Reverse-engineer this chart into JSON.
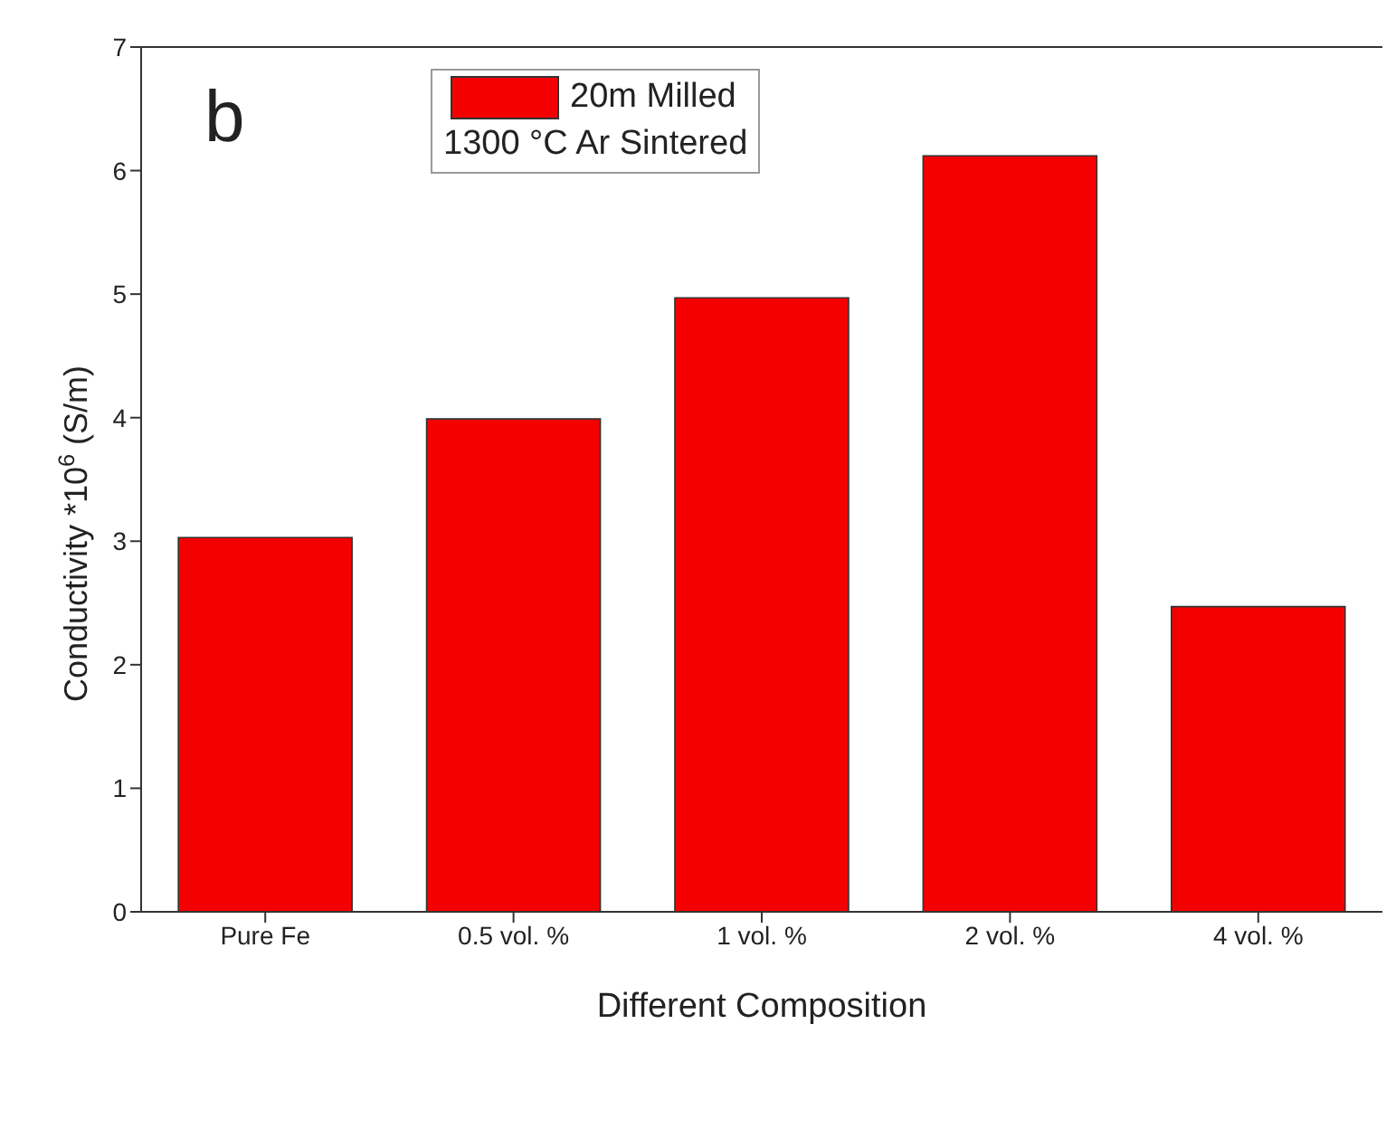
{
  "chart_data": {
    "type": "bar",
    "xlabel": "Different Composition",
    "ylabel": "Conductivity *10$^{6}$ (S/m)",
    "categories": [
      "Pure Fe",
      "0.5 vol. %",
      "1 vol. %",
      "2 vol. %",
      "4 vol. %"
    ],
    "series": [
      {
        "name": "20m Milled",
        "color": "#f50000",
        "values": [
          3.03,
          3.99,
          4.97,
          6.12,
          2.47
        ]
      }
    ],
    "ylim": [
      0,
      7
    ],
    "yticks": [
      0,
      1,
      2,
      3,
      4,
      5,
      6,
      7
    ],
    "grid": false,
    "legend": "top",
    "annotations": [
      "b",
      "1300 °C Ar Sintered"
    ]
  }
}
